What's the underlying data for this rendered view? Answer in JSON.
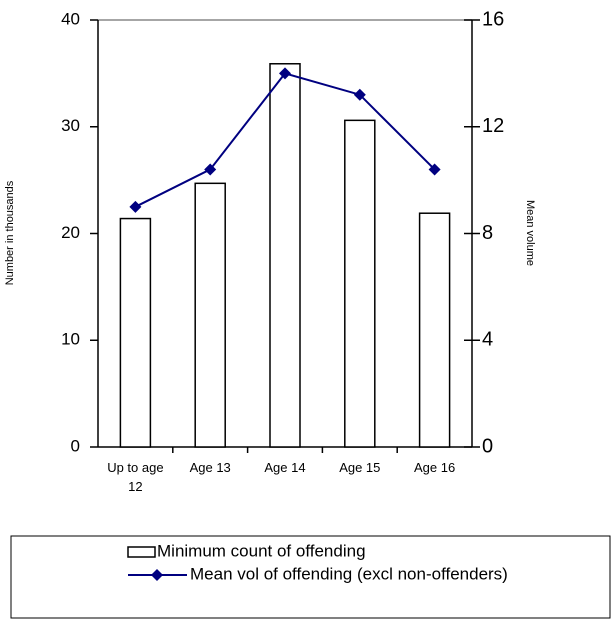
{
  "chart_data": {
    "type": "bar",
    "categories": [
      "Up to age 12",
      "Age 13",
      "Age 14",
      "Age 15",
      "Age 16"
    ],
    "series": [
      {
        "name": "Minimum count of offending",
        "type": "bar",
        "color": "#ffffff",
        "values": [
          21.4,
          24.7,
          35.9,
          30.6,
          21.9
        ]
      },
      {
        "name": "Mean vol of offending (excl non-offenders)",
        "type": "line",
        "axis": "y2",
        "color": "#000080",
        "values": [
          9.0,
          10.4,
          14.0,
          13.2,
          10.4
        ]
      }
    ],
    "ylabel": "Number in thousands",
    "y2label": "Mean volume",
    "ylim": [
      0,
      40
    ],
    "yticks": [
      0,
      10,
      20,
      30,
      40
    ],
    "y2lim": [
      0,
      16
    ],
    "y2ticks": [
      0,
      4,
      8,
      12,
      16
    ],
    "legend": "bottom"
  }
}
